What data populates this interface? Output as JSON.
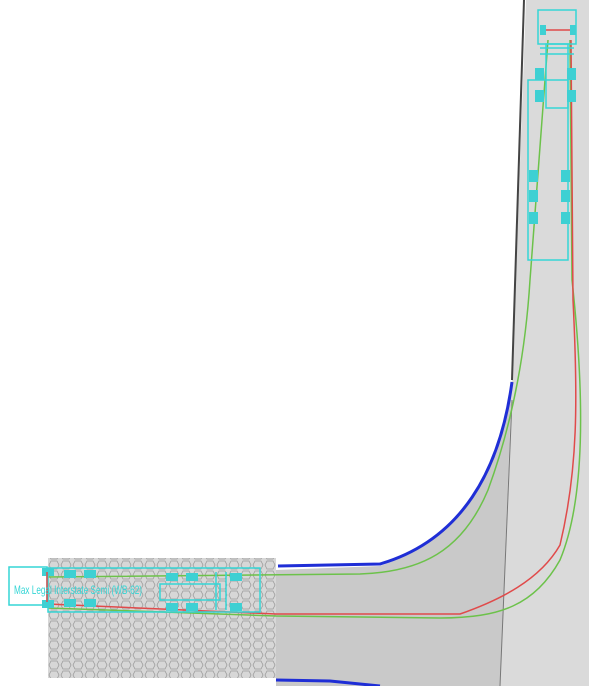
{
  "drawing": {
    "vehicle_label": "Max Legal Interstate Semi (WB-62)",
    "colors": {
      "background": "#ffffff",
      "pavement_main": "#dadada",
      "pavement_turn": "#c9c9c9",
      "pavement_hatched": "#d7d7d7",
      "hatch_stroke": "#9c9c9c",
      "curb": "#1f2ed6",
      "curb_edge": "#444444",
      "vehicle": "#35d6d6",
      "tire": "#3ed0d3",
      "path_front": "#e04a4a",
      "path_rear": "#6cc24a"
    },
    "icons": [
      "vehicle-outline-icon",
      "tractor-cab-icon",
      "tire-icon"
    ]
  }
}
